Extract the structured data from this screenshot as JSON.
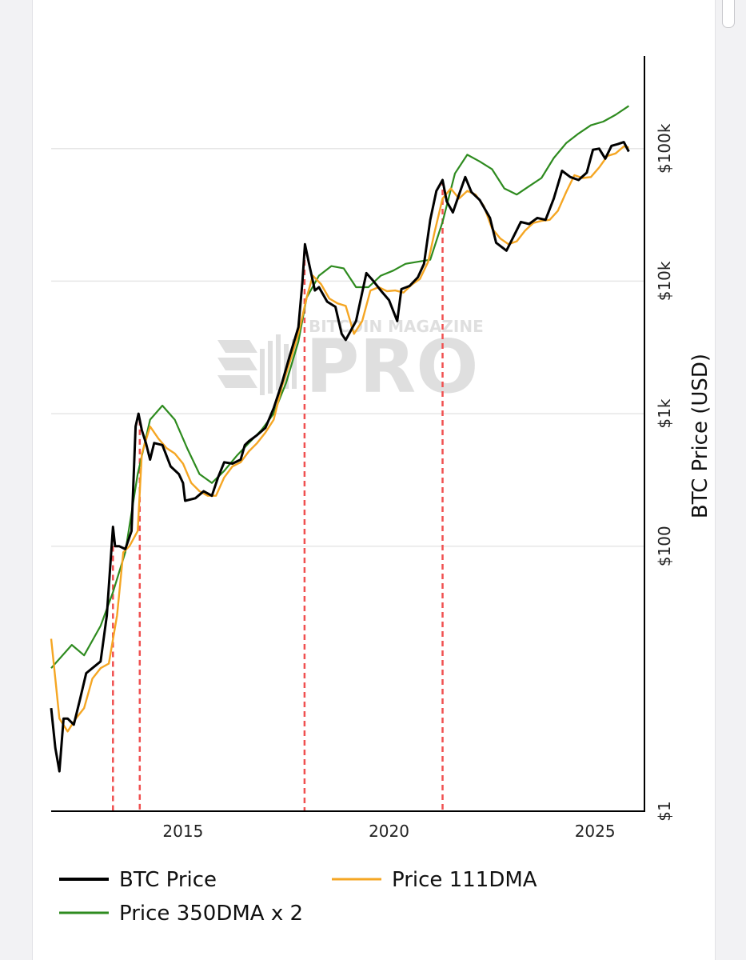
{
  "chart_data": {
    "type": "line",
    "yaxis": {
      "title": "BTC Price (USD)",
      "scale": "log",
      "range": [
        1,
        500000
      ],
      "ticks": [
        1,
        100,
        1000,
        10000,
        100000
      ],
      "tick_labels": [
        "$1",
        "$100",
        "$1k",
        "$10k",
        "$100k"
      ]
    },
    "xaxis": {
      "range": [
        2011.8,
        2026.2
      ],
      "ticks": [
        2015,
        2020,
        2025
      ],
      "tick_labels": [
        "2015",
        "2020",
        "2025"
      ]
    },
    "grid": true,
    "legend": {
      "position": "bottom"
    },
    "series": [
      {
        "name": "BTC Price",
        "color": "#000000",
        "x": [
          2011.8,
          2011.9,
          2012.0,
          2012.1,
          2012.2,
          2012.35,
          2012.5,
          2012.65,
          2012.8,
          2013.0,
          2013.15,
          2013.3,
          2013.35,
          2013.45,
          2013.6,
          2013.75,
          2013.85,
          2013.92,
          2014.0,
          2014.1,
          2014.2,
          2014.3,
          2014.5,
          2014.7,
          2014.9,
          2015.0,
          2015.05,
          2015.3,
          2015.5,
          2015.7,
          2015.85,
          2016.0,
          2016.2,
          2016.4,
          2016.5,
          2016.6,
          2016.8,
          2017.0,
          2017.2,
          2017.4,
          2017.6,
          2017.8,
          2017.9,
          2017.96,
          2018.05,
          2018.2,
          2018.3,
          2018.5,
          2018.7,
          2018.85,
          2018.95,
          2019.2,
          2019.45,
          2019.6,
          2019.8,
          2020.0,
          2020.2,
          2020.3,
          2020.5,
          2020.7,
          2020.85,
          2021.0,
          2021.15,
          2021.3,
          2021.4,
          2021.55,
          2021.7,
          2021.85,
          2022.0,
          2022.2,
          2022.45,
          2022.6,
          2022.85,
          2023.0,
          2023.2,
          2023.4,
          2023.6,
          2023.8,
          2024.0,
          2024.2,
          2024.4,
          2024.6,
          2024.8,
          2024.95,
          2025.1,
          2025.25,
          2025.4,
          2025.55,
          2025.7,
          2025.82
        ],
        "y": [
          6,
          3,
          2,
          5,
          5,
          4.5,
          7,
          11,
          12,
          13.5,
          30,
          140,
          100,
          100,
          95,
          130,
          800,
          1000,
          750,
          600,
          450,
          600,
          580,
          400,
          350,
          300,
          220,
          230,
          260,
          240,
          330,
          430,
          420,
          450,
          580,
          620,
          690,
          780,
          1100,
          1700,
          2800,
          4500,
          10000,
          19000,
          14000,
          8500,
          9000,
          7000,
          6400,
          4000,
          3600,
          5000,
          11500,
          10200,
          8500,
          7200,
          5000,
          8700,
          9200,
          10700,
          13500,
          29000,
          48000,
          58000,
          40000,
          33000,
          45000,
          61000,
          47000,
          41000,
          30000,
          19500,
          17000,
          21000,
          28000,
          27000,
          30000,
          29000,
          42000,
          68000,
          61000,
          58000,
          66000,
          98000,
          100000,
          84000,
          105000,
          108000,
          112000,
          95000
        ]
      },
      {
        "name": "Price 111DMA",
        "color": "#f5a623",
        "x": [
          2011.8,
          2011.9,
          2012.0,
          2012.2,
          2012.4,
          2012.6,
          2012.8,
          2013.0,
          2013.2,
          2013.4,
          2013.55,
          2013.7,
          2013.9,
          2014.0,
          2014.2,
          2014.4,
          2014.6,
          2014.8,
          2015.0,
          2015.2,
          2015.4,
          2015.6,
          2015.8,
          2016.0,
          2016.2,
          2016.4,
          2016.6,
          2016.8,
          2017.0,
          2017.2,
          2017.4,
          2017.6,
          2017.8,
          2018.0,
          2018.15,
          2018.35,
          2018.55,
          2018.75,
          2018.95,
          2019.15,
          2019.35,
          2019.55,
          2019.75,
          2019.95,
          2020.15,
          2020.35,
          2020.55,
          2020.75,
          2020.95,
          2021.1,
          2021.3,
          2021.5,
          2021.7,
          2021.9,
          2022.1,
          2022.3,
          2022.5,
          2022.7,
          2022.9,
          2023.1,
          2023.3,
          2023.5,
          2023.7,
          2023.9,
          2024.1,
          2024.3,
          2024.5,
          2024.7,
          2024.9,
          2025.1,
          2025.3,
          2025.5,
          2025.7,
          2025.82
        ],
        "y": [
          20,
          10,
          5,
          4,
          5,
          6,
          10,
          12,
          13,
          30,
          90,
          100,
          130,
          500,
          800,
          650,
          550,
          500,
          420,
          300,
          260,
          240,
          240,
          330,
          400,
          430,
          520,
          600,
          720,
          900,
          1600,
          2500,
          4000,
          7500,
          11000,
          9500,
          7400,
          6800,
          6500,
          4000,
          5000,
          8500,
          9000,
          8400,
          8500,
          8200,
          9400,
          10400,
          14000,
          23000,
          42000,
          50000,
          42000,
          48000,
          45000,
          37000,
          25000,
          21000,
          19000,
          20000,
          24000,
          27500,
          28500,
          29000,
          34000,
          47000,
          63000,
          60000,
          61000,
          72000,
          88000,
          92000,
          104000,
          102000
        ]
      },
      {
        "name": "Price 350DMA x 2",
        "color": "#2e8b1f",
        "x": [
          2011.8,
          2012.3,
          2012.6,
          2013.0,
          2013.3,
          2013.6,
          2013.9,
          2014.2,
          2014.5,
          2014.8,
          2015.1,
          2015.4,
          2015.7,
          2016.0,
          2016.3,
          2016.6,
          2016.9,
          2017.2,
          2017.5,
          2017.8,
          2018.0,
          2018.3,
          2018.6,
          2018.9,
          2019.2,
          2019.5,
          2019.8,
          2020.1,
          2020.4,
          2020.7,
          2021.0,
          2021.3,
          2021.6,
          2021.9,
          2022.2,
          2022.5,
          2022.8,
          2023.1,
          2023.4,
          2023.7,
          2024.0,
          2024.3,
          2024.6,
          2024.9,
          2025.2,
          2025.5,
          2025.82
        ],
        "y": [
          12,
          18,
          15,
          25,
          45,
          90,
          350,
          900,
          1150,
          900,
          550,
          350,
          300,
          370,
          480,
          600,
          750,
          1000,
          1700,
          3500,
          7500,
          11000,
          13000,
          12500,
          9000,
          9000,
          11000,
          12000,
          13500,
          14000,
          14500,
          28000,
          65000,
          90000,
          80000,
          70000,
          50000,
          45000,
          52000,
          60000,
          85000,
          110000,
          130000,
          150000,
          160000,
          180000,
          210000
        ]
      }
    ],
    "annotations": {
      "vertical_lines": {
        "x": [
          2013.3,
          2013.95,
          2017.95,
          2021.3
        ],
        "color": "#f05050",
        "style": "dashed"
      }
    }
  },
  "watermark": {
    "top": "BITCOIN MAGAZINE",
    "main": "PRO"
  },
  "colors": {
    "background": "#ffffff",
    "grid": "#e6e6e6",
    "peak_lines": "#f05050"
  }
}
